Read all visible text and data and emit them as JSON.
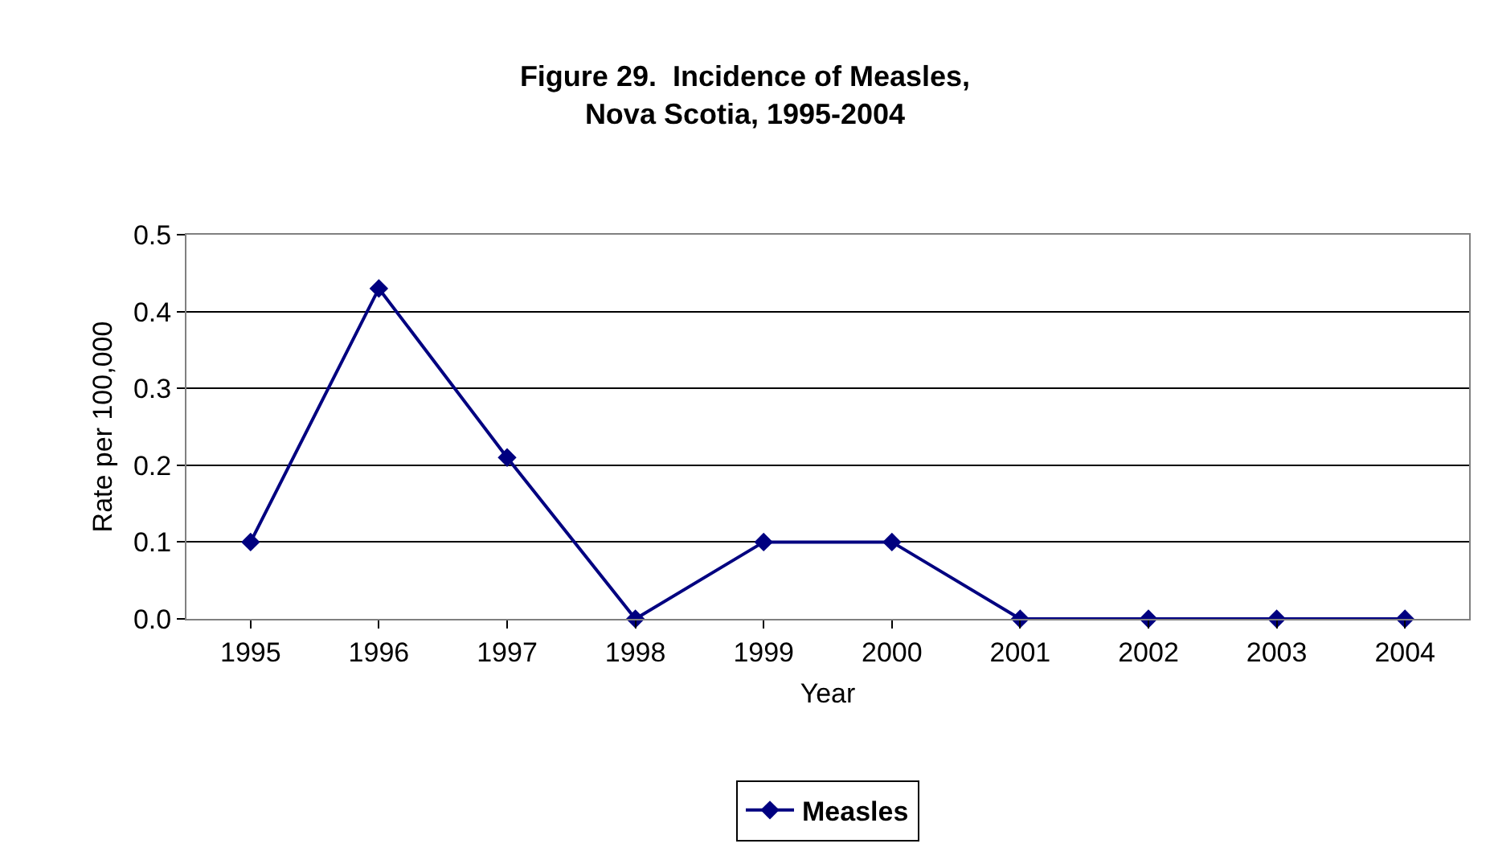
{
  "chart_data": {
    "type": "line",
    "title": "Figure 29.  Incidence of Measles,\nNova Scotia, 1995-2004",
    "xlabel": "Year",
    "ylabel": "Rate per 100,000",
    "categories": [
      "1995",
      "1996",
      "1997",
      "1998",
      "1999",
      "2000",
      "2001",
      "2002",
      "2003",
      "2004"
    ],
    "series": [
      {
        "name": "Measles",
        "color": "#000080",
        "values": [
          0.1,
          0.43,
          0.21,
          0,
          0.1,
          0.1,
          0,
          0,
          0,
          0
        ]
      }
    ],
    "ylim": [
      0,
      0.5
    ],
    "yticks": [
      {
        "value": 0,
        "label": "0.0"
      },
      {
        "value": 0.1,
        "label": "0.1"
      },
      {
        "value": 0.2,
        "label": "0.2"
      },
      {
        "value": 0.3,
        "label": "0.3"
      },
      {
        "value": 0.4,
        "label": "0.4"
      },
      {
        "value": 0.5,
        "label": "0.5"
      }
    ],
    "grid": "y",
    "legend": "bottom",
    "marker": "diamond",
    "line_style": "solid"
  }
}
